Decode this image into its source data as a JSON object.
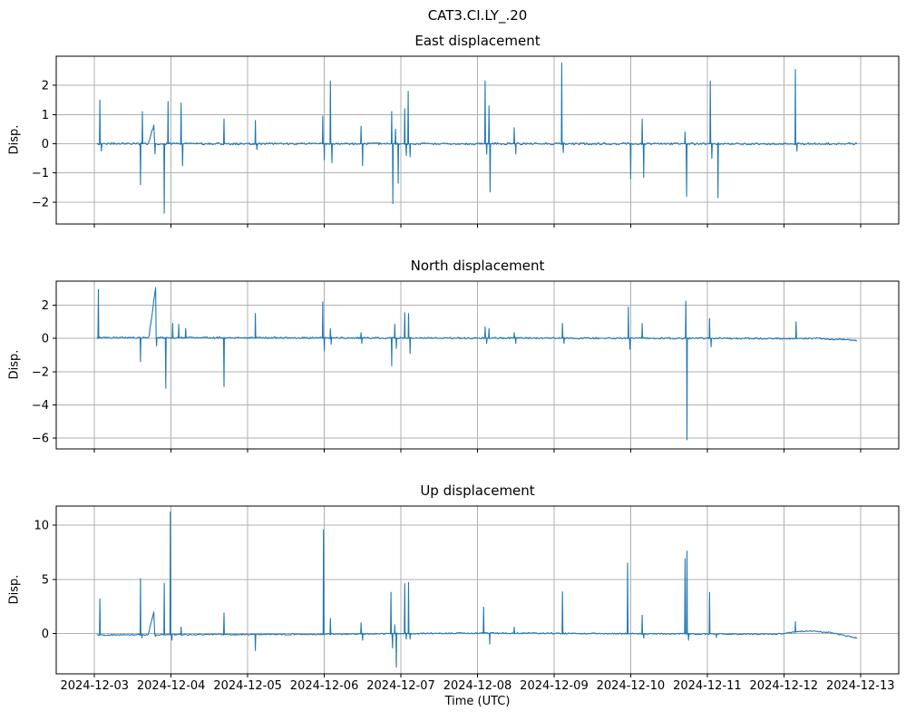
{
  "figure": {
    "title": "CAT3.CI.LY_.20",
    "background": "#ffffff",
    "grid_color": "#b0b0b0",
    "spine_color": "#000000"
  },
  "x_axis": {
    "label": "Time (UTC)",
    "start_date": "2024-12-03",
    "tick_labels": [
      "2024-12-03",
      "2024-12-04",
      "2024-12-05",
      "2024-12-06",
      "2024-12-07",
      "2024-12-08",
      "2024-12-09",
      "2024-12-10",
      "2024-12-11",
      "2024-12-12",
      "2024-12-13"
    ],
    "xlim_days": [
      -0.5,
      10.5
    ],
    "grid": true
  },
  "chart_data": [
    {
      "type": "line",
      "id": "east",
      "title": "East displacement",
      "ylabel": "Disp.",
      "line_color": "#1f77b4",
      "yticks": [
        2,
        1,
        0,
        -1,
        -2
      ],
      "ylim": [
        -2.75,
        3.0
      ],
      "grid": true,
      "baseline": 0,
      "noise": 0.035,
      "t_start": 0.03,
      "t_end": 9.96,
      "drift": [
        [
          0,
          0
        ],
        [
          10,
          0
        ]
      ],
      "ramps": [
        {
          "t0": 0.7,
          "t1": 0.785,
          "v": 0.72
        }
      ],
      "spikes": [
        [
          0.07,
          1.5
        ],
        [
          0.09,
          -0.25
        ],
        [
          0.6,
          -1.4
        ],
        [
          0.625,
          1.1
        ],
        [
          0.79,
          -0.35
        ],
        [
          0.91,
          -2.38
        ],
        [
          0.96,
          1.45
        ],
        [
          1.13,
          1.4
        ],
        [
          1.15,
          -0.75
        ],
        [
          1.69,
          0.85
        ],
        [
          2.1,
          0.8
        ],
        [
          2.12,
          -0.2
        ],
        [
          2.98,
          0.95
        ],
        [
          3.0,
          -0.55
        ],
        [
          3.08,
          2.15
        ],
        [
          3.1,
          -0.65
        ],
        [
          3.48,
          0.6
        ],
        [
          3.5,
          -0.75
        ],
        [
          3.88,
          1.1
        ],
        [
          3.895,
          -2.05
        ],
        [
          3.93,
          0.5
        ],
        [
          3.965,
          -1.35
        ],
        [
          4.05,
          1.2
        ],
        [
          4.07,
          -0.4
        ],
        [
          4.095,
          1.8
        ],
        [
          4.12,
          -0.45
        ],
        [
          5.1,
          2.15
        ],
        [
          5.12,
          -0.35
        ],
        [
          5.15,
          1.3
        ],
        [
          5.165,
          -1.65
        ],
        [
          5.48,
          0.55
        ],
        [
          5.5,
          -0.35
        ],
        [
          6.1,
          2.77
        ],
        [
          6.12,
          -0.3
        ],
        [
          7.0,
          -1.2
        ],
        [
          7.15,
          0.85
        ],
        [
          7.17,
          -1.15
        ],
        [
          7.71,
          0.4
        ],
        [
          7.73,
          -1.8
        ],
        [
          8.04,
          2.15
        ],
        [
          8.06,
          -0.5
        ],
        [
          8.14,
          -1.85
        ],
        [
          9.15,
          2.55
        ],
        [
          9.17,
          -0.25
        ]
      ]
    },
    {
      "type": "line",
      "id": "north",
      "title": "North displacement",
      "ylabel": "Disp.",
      "line_color": "#1f77b4",
      "yticks": [
        2,
        0,
        -2,
        -4,
        -6
      ],
      "ylim": [
        -6.65,
        3.45
      ],
      "grid": true,
      "baseline": 0,
      "noise": 0.05,
      "t_start": 0.03,
      "t_end": 9.96,
      "drift": [
        [
          0,
          0.05
        ],
        [
          9.5,
          0
        ],
        [
          9.96,
          -0.1
        ]
      ],
      "ramps": [
        {
          "t0": 0.71,
          "t1": 0.8,
          "v": 3.1
        }
      ],
      "spikes": [
        [
          0.05,
          2.95
        ],
        [
          0.6,
          -1.4
        ],
        [
          0.81,
          -0.45
        ],
        [
          0.93,
          -3.0
        ],
        [
          1.02,
          0.9
        ],
        [
          1.1,
          0.85
        ],
        [
          1.19,
          0.6
        ],
        [
          1.69,
          -2.9
        ],
        [
          2.1,
          1.5
        ],
        [
          2.98,
          2.2
        ],
        [
          3.0,
          -0.75
        ],
        [
          3.08,
          0.6
        ],
        [
          3.09,
          -0.35
        ],
        [
          3.48,
          0.35
        ],
        [
          3.49,
          -0.3
        ],
        [
          3.88,
          -1.65
        ],
        [
          3.92,
          0.85
        ],
        [
          3.94,
          -0.6
        ],
        [
          4.05,
          1.55
        ],
        [
          4.1,
          1.5
        ],
        [
          4.12,
          -0.9
        ],
        [
          5.1,
          0.7
        ],
        [
          5.12,
          -0.3
        ],
        [
          5.15,
          0.6
        ],
        [
          5.48,
          0.35
        ],
        [
          5.5,
          -0.3
        ],
        [
          6.11,
          0.9
        ],
        [
          6.13,
          -0.3
        ],
        [
          6.97,
          1.9
        ],
        [
          6.99,
          -0.65
        ],
        [
          7.15,
          0.9
        ],
        [
          7.72,
          2.25
        ],
        [
          7.735,
          -6.1
        ],
        [
          8.03,
          1.2
        ],
        [
          8.05,
          -0.5
        ],
        [
          9.16,
          1.0
        ]
      ]
    },
    {
      "type": "line",
      "id": "up",
      "title": "Up displacement",
      "ylabel": "Disp.",
      "line_color": "#1f77b4",
      "yticks": [
        10,
        5,
        0
      ],
      "ylim": [
        -3.7,
        11.75
      ],
      "grid": true,
      "baseline": 0,
      "noise": 0.06,
      "t_start": 0.03,
      "t_end": 9.96,
      "drift": [
        [
          0,
          -0.12
        ],
        [
          3.0,
          -0.05
        ],
        [
          5.0,
          0.05
        ],
        [
          8.9,
          -0.05
        ],
        [
          9.3,
          0.25
        ],
        [
          9.6,
          0.1
        ],
        [
          9.96,
          -0.4
        ]
      ],
      "ramps": [
        {
          "t0": 0.7,
          "t1": 0.785,
          "v": 2.4
        }
      ],
      "spikes": [
        [
          0.07,
          3.2
        ],
        [
          0.6,
          5.05
        ],
        [
          0.62,
          -0.4
        ],
        [
          0.795,
          -0.25
        ],
        [
          0.91,
          4.65
        ],
        [
          0.99,
          11.2
        ],
        [
          1.01,
          -0.6
        ],
        [
          1.13,
          0.6
        ],
        [
          1.69,
          1.9
        ],
        [
          2.1,
          -1.55
        ],
        [
          2.99,
          9.55
        ],
        [
          3.08,
          1.4
        ],
        [
          3.48,
          1.0
        ],
        [
          3.5,
          -0.6
        ],
        [
          3.87,
          3.8
        ],
        [
          3.89,
          -1.3
        ],
        [
          3.92,
          0.8
        ],
        [
          3.94,
          -3.1
        ],
        [
          4.05,
          4.6
        ],
        [
          4.07,
          -0.5
        ],
        [
          4.1,
          4.7
        ],
        [
          4.12,
          -0.5
        ],
        [
          5.08,
          2.45
        ],
        [
          5.16,
          -0.95
        ],
        [
          5.48,
          0.6
        ],
        [
          6.11,
          3.85
        ],
        [
          6.96,
          6.5
        ],
        [
          7.15,
          1.7
        ],
        [
          7.17,
          -0.4
        ],
        [
          7.71,
          6.9
        ],
        [
          7.735,
          7.6
        ],
        [
          7.755,
          -0.6
        ],
        [
          8.03,
          3.8
        ],
        [
          8.12,
          -0.35
        ],
        [
          9.15,
          1.1
        ]
      ]
    }
  ]
}
